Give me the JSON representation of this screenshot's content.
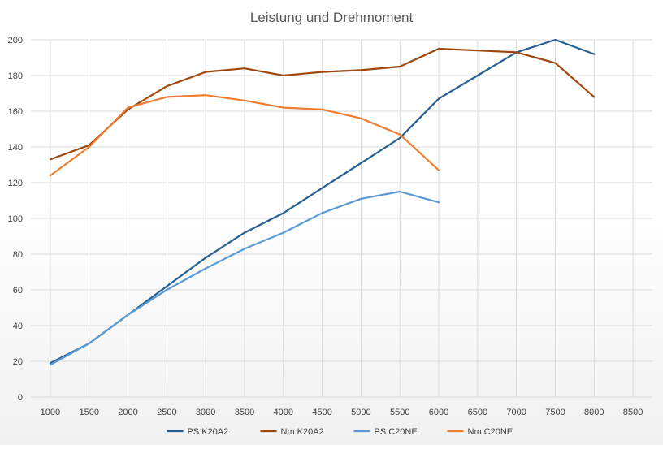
{
  "chart_data": {
    "type": "line",
    "title": "Leistung und Drehmoment",
    "xlabel": "",
    "ylabel": "",
    "x": [
      1000,
      1500,
      2000,
      2500,
      3000,
      3500,
      4000,
      4500,
      5000,
      5500,
      6000,
      6500,
      7000,
      7500,
      8000,
      8500
    ],
    "xlim": [
      1000,
      8500
    ],
    "ylim": [
      0,
      200
    ],
    "yticks": [
      0,
      20,
      40,
      60,
      80,
      100,
      120,
      140,
      160,
      180,
      200
    ],
    "grid": true,
    "legend": "bottom",
    "series": [
      {
        "name": "PS K20A2",
        "color": "#255e91",
        "x": [
          1000,
          1500,
          2000,
          2500,
          3000,
          3500,
          4000,
          4500,
          5000,
          5500,
          6000,
          6500,
          7000,
          7500,
          8000
        ],
        "values": [
          19,
          30,
          46,
          62,
          78,
          92,
          103,
          117,
          131,
          145,
          167,
          180,
          193,
          200,
          192
        ]
      },
      {
        "name": "Nm K20A2",
        "color": "#9e480e",
        "x": [
          1000,
          1500,
          2000,
          2500,
          3000,
          3500,
          4000,
          4500,
          5000,
          5500,
          6000,
          6500,
          7000,
          7500,
          8000
        ],
        "values": [
          133,
          141,
          161,
          174,
          182,
          184,
          180,
          182,
          183,
          185,
          195,
          194,
          193,
          187,
          168
        ]
      },
      {
        "name": "PS C20NE",
        "color": "#5b9bd5",
        "x": [
          1000,
          1500,
          2000,
          2500,
          3000,
          3500,
          4000,
          4500,
          5000,
          5500,
          6000
        ],
        "values": [
          18,
          30,
          46,
          60,
          72,
          83,
          92,
          103,
          111,
          115,
          109
        ]
      },
      {
        "name": "Nm C20NE",
        "color": "#ed7d31",
        "x": [
          1000,
          1500,
          2000,
          2500,
          3000,
          3500,
          4000,
          4500,
          5000,
          5500,
          6000
        ],
        "values": [
          124,
          140,
          162,
          168,
          169,
          166,
          162,
          161,
          156,
          147,
          127
        ]
      }
    ]
  }
}
